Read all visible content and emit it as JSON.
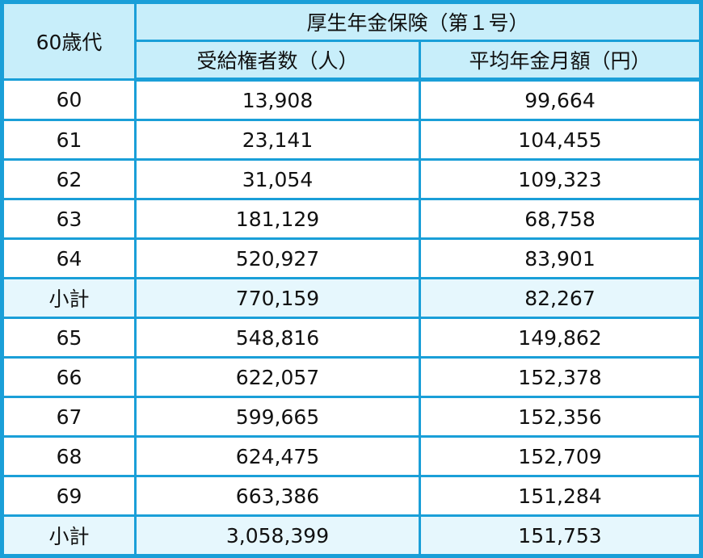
{
  "header": {
    "age_group": "60歳代",
    "group": "厚生年金保険（第１号）",
    "col1": "受給権者数（人）",
    "col2": "平均年金月額（円）"
  },
  "rows": [
    {
      "age": "60",
      "count": "13,908",
      "avg": "99,664",
      "subtotal": false
    },
    {
      "age": "61",
      "count": "23,141",
      "avg": "104,455",
      "subtotal": false
    },
    {
      "age": "62",
      "count": "31,054",
      "avg": "109,323",
      "subtotal": false
    },
    {
      "age": "63",
      "count": "181,129",
      "avg": "68,758",
      "subtotal": false
    },
    {
      "age": "64",
      "count": "520,927",
      "avg": "83,901",
      "subtotal": false
    },
    {
      "age": "小計",
      "count": "770,159",
      "avg": "82,267",
      "subtotal": true
    },
    {
      "age": "65",
      "count": "548,816",
      "avg": "149,862",
      "subtotal": false
    },
    {
      "age": "66",
      "count": "622,057",
      "avg": "152,378",
      "subtotal": false
    },
    {
      "age": "67",
      "count": "599,665",
      "avg": "152,356",
      "subtotal": false
    },
    {
      "age": "68",
      "count": "624,475",
      "avg": "152,709",
      "subtotal": false
    },
    {
      "age": "69",
      "count": "663,386",
      "avg": "151,284",
      "subtotal": false
    },
    {
      "age": "小計",
      "count": "3,058,399",
      "avg": "151,753",
      "subtotal": true
    }
  ],
  "colors": {
    "border": "#1a9fd8",
    "header_bg": "#c8eefa",
    "subtotal_bg": "#e6f7fd"
  }
}
